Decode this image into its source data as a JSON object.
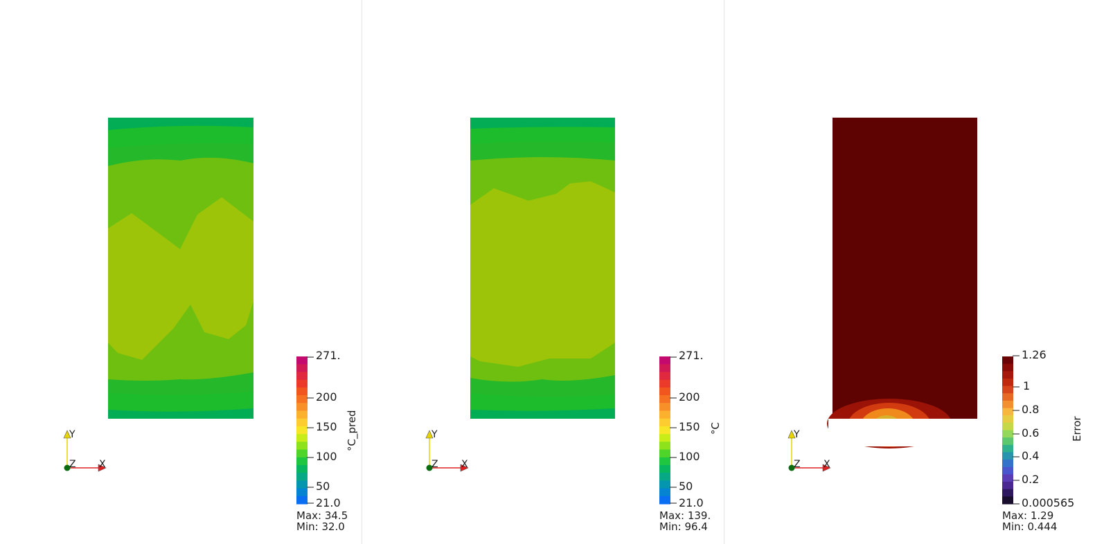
{
  "views": [
    {
      "field_title": "°C_pred",
      "colorbar": {
        "top_label": "271.",
        "ticks": [
          "200",
          "150",
          "100",
          "50"
        ],
        "bottom_label": "21.0",
        "scale": "rainbow"
      },
      "max_label": "Max: 34.5",
      "min_label": "Min: 32.0"
    },
    {
      "field_title": "°C",
      "colorbar": {
        "top_label": "271.",
        "ticks": [
          "200",
          "150",
          "100",
          "50"
        ],
        "bottom_label": "21.0",
        "scale": "rainbow"
      },
      "max_label": "Max: 139.",
      "min_label": "Min: 96.4"
    },
    {
      "field_title": "Error",
      "colorbar": {
        "top_label": "1.26",
        "ticks": [
          "1",
          "0.8",
          "0.6",
          "0.4",
          "0.2"
        ],
        "bottom_label": "0.000565",
        "scale": "turbo-dark"
      },
      "max_label": "Max: 1.29",
      "min_label": "Min: 0.444"
    }
  ],
  "axes_labels": {
    "y": "Y",
    "z": "Z",
    "x": "X"
  },
  "colors": {
    "band_dark": "#03ad55",
    "band_mid": "#1cbc2d",
    "band_light": "#6fbf11",
    "band_core": "#9dc408",
    "error_fill": "#5e0302",
    "axis_x": "#e02020",
    "axis_y": "#e8d400",
    "axis_origin": "#0b6b10"
  }
}
